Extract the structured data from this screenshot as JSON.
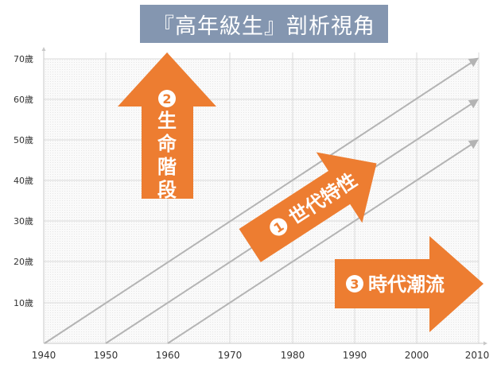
{
  "title": "『高年級生』剖析視角",
  "axes": {
    "y_ticks": [
      "10歲",
      "20歲",
      "30歲",
      "40歲",
      "50歲",
      "60歲",
      "70歲"
    ],
    "x_ticks": [
      "1940",
      "1950",
      "1960",
      "1970",
      "1980",
      "1990",
      "2000",
      "2010"
    ]
  },
  "arrows": {
    "life_stage": {
      "number": "2",
      "chars": [
        "生",
        "命",
        "階",
        "段"
      ]
    },
    "generation": {
      "number": "1",
      "label": "世代特性"
    },
    "trend": {
      "number": "3",
      "label": "時代潮流"
    }
  },
  "colors": {
    "arrow": "#ed7d31",
    "title_bg": "#8496b0",
    "grid": "#d9d9d9",
    "diagonal": "#b4b4b4"
  }
}
